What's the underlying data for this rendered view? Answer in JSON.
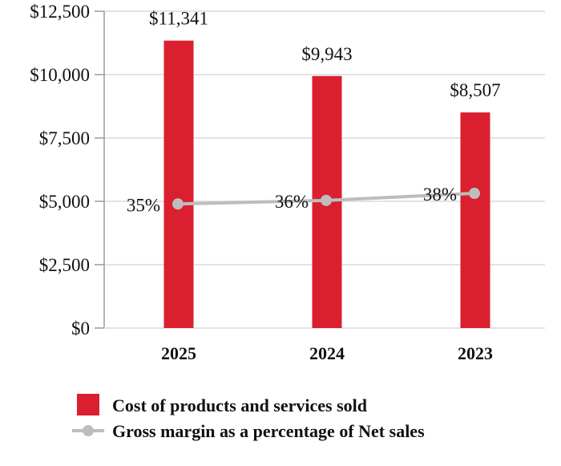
{
  "chart_data": {
    "type": "bar",
    "categories": [
      "2025",
      "2024",
      "2023"
    ],
    "series": [
      {
        "name": "Cost of products and services sold",
        "type": "bar",
        "values": [
          11341,
          9943,
          8507
        ],
        "labels": [
          "$11,341",
          "$9,943",
          "$8,507"
        ],
        "color": "#DA1F2F"
      },
      {
        "name": "Gross margin as a percentage of Net sales",
        "type": "line",
        "values": [
          35,
          36,
          38
        ],
        "labels": [
          "35%",
          "36%",
          "38%"
        ],
        "color": "#BDBDBD"
      }
    ],
    "ylim": [
      0,
      12500
    ],
    "yticks": [
      0,
      2500,
      5000,
      7500,
      10000,
      12500
    ],
    "ytick_labels": [
      "$0",
      "$2,500",
      "$5,000",
      "$7,500",
      "$10,000",
      "$12,500"
    ],
    "grid": true,
    "legend": "bottom"
  }
}
